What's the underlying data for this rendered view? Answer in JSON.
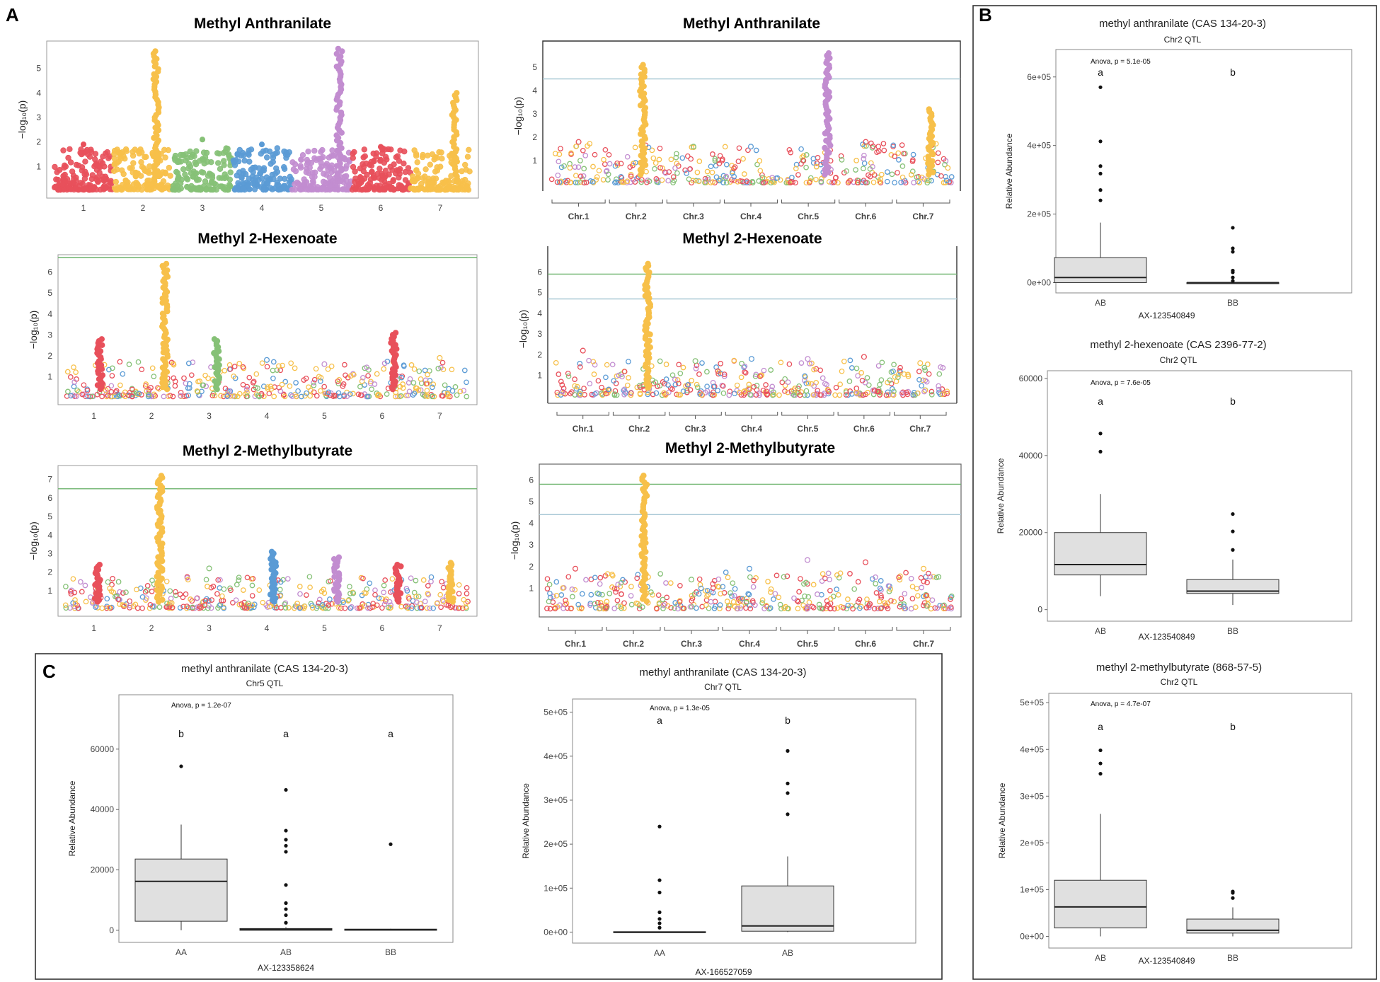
{
  "panels": {
    "a": "A",
    "b": "B",
    "c": "C"
  },
  "colors": {
    "chromosomes": [
      "#e8505b",
      "#f7c04a",
      "#86c177",
      "#5b9bd5",
      "#c28dd0",
      "#e8505b",
      "#f7c04a"
    ],
    "threshold_green": "#6db36d",
    "threshold_blue": "#a9c9d6",
    "box_fill": "#e0e0e0"
  },
  "chart_data": [
    {
      "id": "A1",
      "type": "scatter",
      "subtype": "manhattan",
      "style": "filled",
      "title": "Methyl Anthranilate",
      "ylabel": "−log₁₀(p)",
      "ylim": [
        0,
        6
      ],
      "yticks": [
        1,
        2,
        3,
        4,
        5
      ],
      "chromosomes": [
        "1",
        "2",
        "3",
        "4",
        "5",
        "6",
        "7"
      ],
      "chr_max": [
        1.9,
        5.7,
        2.1,
        1.9,
        5.8,
        1.8,
        4.0
      ],
      "thresholds": []
    },
    {
      "id": "A2",
      "type": "scatter",
      "subtype": "manhattan",
      "style": "hollow",
      "title": "Methyl Anthranilate",
      "ylabel": "−log₁₀(p)",
      "ylim": [
        0,
        6
      ],
      "yticks": [
        1,
        2,
        3,
        4,
        5
      ],
      "chromosomes": [
        "Chr.1",
        "Chr.2",
        "Chr.3",
        "Chr.4",
        "Chr.5",
        "Chr.6",
        "Chr.7"
      ],
      "chr_max": [
        1.8,
        5.1,
        1.6,
        1.6,
        5.6,
        1.8,
        3.2
      ],
      "thresholds": [
        {
          "value": 4.5,
          "color": "blue"
        }
      ]
    },
    {
      "id": "A3",
      "type": "scatter",
      "subtype": "manhattan",
      "style": "hollow",
      "title": "Methyl 2-Hexenoate",
      "ylabel": "−log₁₀(p)",
      "ylim": [
        0,
        6.7
      ],
      "yticks": [
        1,
        2,
        3,
        4,
        5,
        6
      ],
      "chromosomes": [
        "1",
        "2",
        "3",
        "4",
        "5",
        "6",
        "7"
      ],
      "chr_max": [
        2.8,
        6.4,
        2.8,
        1.8,
        1.6,
        3.1,
        1.9
      ],
      "thresholds": [
        {
          "value": 6.7,
          "color": "green"
        }
      ]
    },
    {
      "id": "A4",
      "type": "scatter",
      "subtype": "manhattan",
      "style": "hollow",
      "title": "Methyl 2-Hexenoate",
      "ylabel": "−log₁₀(p)",
      "ylim": [
        0,
        6.7
      ],
      "yticks": [
        1,
        2,
        3,
        4,
        5,
        6
      ],
      "chromosomes": [
        "Chr.1",
        "Chr.2",
        "Chr.3",
        "Chr.4",
        "Chr.5",
        "Chr.6",
        "Chr.7"
      ],
      "chr_max": [
        2.2,
        6.4,
        1.7,
        1.8,
        1.8,
        1.9,
        1.6
      ],
      "thresholds": [
        {
          "value": 5.9,
          "color": "green"
        },
        {
          "value": 4.7,
          "color": "blue"
        }
      ]
    },
    {
      "id": "A5",
      "type": "scatter",
      "subtype": "manhattan",
      "style": "hollow",
      "title": "Methyl 2-Methylbutyrate",
      "ylabel": "−log₁₀(p)",
      "ylim": [
        0,
        7.6
      ],
      "yticks": [
        1,
        2,
        3,
        4,
        5,
        6,
        7
      ],
      "chromosomes": [
        "1",
        "2",
        "3",
        "4",
        "5",
        "6",
        "7"
      ],
      "chr_max": [
        2.4,
        7.2,
        2.2,
        3.1,
        2.8,
        2.4,
        2.5
      ],
      "thresholds": [
        {
          "value": 6.5,
          "color": "green"
        }
      ]
    },
    {
      "id": "A6",
      "type": "scatter",
      "subtype": "manhattan",
      "style": "hollow",
      "title": "Methyl 2-Methylbutyrate",
      "ylabel": "−log₁₀(p)",
      "ylim": [
        0,
        6.6
      ],
      "yticks": [
        1,
        2,
        3,
        4,
        5,
        6
      ],
      "chromosomes": [
        "Chr.1",
        "Chr.2",
        "Chr.3",
        "Chr.4",
        "Chr.5",
        "Chr.6",
        "Chr.7"
      ],
      "chr_max": [
        1.9,
        6.2,
        1.4,
        1.9,
        2.3,
        2.2,
        1.9
      ],
      "thresholds": [
        {
          "value": 5.8,
          "color": "green"
        },
        {
          "value": 4.4,
          "color": "blue"
        }
      ]
    },
    {
      "id": "B1",
      "type": "box",
      "title": "methyl anthranilate (CAS 134-20-3)",
      "subtitle": "Chr2 QTL",
      "xlabel": "AX-123540849",
      "ylabel": "Relative Abundance",
      "anova": "Anova, p = 5.1e-05",
      "ylim": [
        -30000,
        680000
      ],
      "yticks": [
        0,
        200000,
        400000,
        600000
      ],
      "ytick_labels": [
        "0e+00",
        "2e+05",
        "4e+05",
        "6e+05"
      ],
      "groups": [
        {
          "label": "AB",
          "letter": "a",
          "q1": 0,
          "median": 15000,
          "q3": 73000,
          "whisker_low": 0,
          "whisker_high": 175000,
          "outliers": [
            240000,
            270000,
            318000,
            340000,
            412000,
            570000
          ]
        },
        {
          "label": "BB",
          "letter": "b",
          "q1": 0,
          "median": 0,
          "q3": 0,
          "whisker_low": 0,
          "whisker_high": 0,
          "outliers": [
            5000,
            15000,
            30000,
            35000,
            90000,
            100000,
            160000
          ]
        }
      ]
    },
    {
      "id": "B2",
      "type": "box",
      "title": "methyl 2-hexenoate (CAS 2396-77-2)",
      "subtitle": "Chr2 QTL",
      "xlabel": "AX-123540849",
      "ylabel": "Relative Abundance",
      "anova": "Anova, p = 7.6e-05",
      "ylim": [
        -3000,
        62000
      ],
      "yticks": [
        0,
        20000,
        40000,
        60000
      ],
      "ytick_labels": [
        "0",
        "20000",
        "40000",
        "60000"
      ],
      "groups": [
        {
          "label": "AB",
          "letter": "a",
          "q1": 9000,
          "median": 11700,
          "q3": 20000,
          "whisker_low": 3500,
          "whisker_high": 30000,
          "outliers": [
            41000,
            45700
          ]
        },
        {
          "label": "BB",
          "letter": "b",
          "q1": 4200,
          "median": 4800,
          "q3": 7800,
          "whisker_low": 1200,
          "whisker_high": 13000,
          "outliers": [
            15500,
            20300,
            24800
          ]
        }
      ]
    },
    {
      "id": "B3",
      "type": "box",
      "title": "methyl 2-methylbutyrate (868-57-5)",
      "subtitle": "Chr2 QTL",
      "xlabel": "AX-123540849",
      "ylabel": "Relative Abundance",
      "anova": "Anova, p = 4.7e-07",
      "ylim": [
        -25000,
        520000
      ],
      "yticks": [
        0,
        100000,
        200000,
        300000,
        400000,
        500000
      ],
      "ytick_labels": [
        "0e+00",
        "1e+05",
        "2e+05",
        "3e+05",
        "4e+05",
        "5e+05"
      ],
      "groups": [
        {
          "label": "AB",
          "letter": "a",
          "q1": 18000,
          "median": 63000,
          "q3": 120000,
          "whisker_low": 0,
          "whisker_high": 262000,
          "outliers": [
            348000,
            370000,
            398000
          ]
        },
        {
          "label": "BB",
          "letter": "b",
          "q1": 7000,
          "median": 13000,
          "q3": 37000,
          "whisker_low": 0,
          "whisker_high": 62000,
          "outliers": [
            82000,
            93000,
            96000
          ]
        }
      ]
    },
    {
      "id": "C1",
      "type": "box",
      "title": "methyl anthranilate (CAS 134-20-3)",
      "subtitle": "Chr5 QTL",
      "xlabel": "AX-123358624",
      "ylabel": "Relative Abundance",
      "anova": "Anova, p = 1.2e-07",
      "ylim": [
        -4000,
        78000
      ],
      "yticks": [
        0,
        20000,
        40000,
        60000
      ],
      "ytick_labels": [
        "0",
        "20000",
        "40000",
        "60000"
      ],
      "groups": [
        {
          "label": "AA",
          "letter": "b",
          "q1": 3000,
          "median": 16200,
          "q3": 23600,
          "whisker_low": 0,
          "whisker_high": 35000,
          "outliers": [
            54300
          ]
        },
        {
          "label": "AB",
          "letter": "a",
          "q1": 0,
          "median": 300,
          "q3": 600,
          "whisker_low": 0,
          "whisker_high": 1000,
          "outliers": [
            2500,
            5000,
            7000,
            9000,
            15000,
            26000,
            28000,
            30000,
            33000,
            46500
          ]
        },
        {
          "label": "BB",
          "letter": "a",
          "q1": 0,
          "median": 200,
          "q3": 400,
          "whisker_low": 0,
          "whisker_high": 500,
          "outliers": [
            28500
          ]
        }
      ]
    },
    {
      "id": "C2",
      "type": "box",
      "title": "methyl anthranilate (CAS 134-20-3)",
      "subtitle": "Chr7 QTL",
      "xlabel": "AX-166527059",
      "ylabel": "Relative Abundance",
      "anova": "Anova, p = 1.3e-05",
      "ylim": [
        -25000,
        530000
      ],
      "yticks": [
        0,
        100000,
        200000,
        300000,
        400000,
        500000
      ],
      "ytick_labels": [
        "0e+00",
        "1e+05",
        "2e+05",
        "3e+05",
        "4e+05",
        "5e+05"
      ],
      "groups": [
        {
          "label": "AA",
          "letter": "a",
          "q1": 0,
          "median": 0,
          "q3": 1000,
          "whisker_low": 0,
          "whisker_high": 1500,
          "outliers": [
            10000,
            20000,
            30000,
            45000,
            90000,
            118000,
            240000
          ]
        },
        {
          "label": "AB",
          "letter": "b",
          "q1": 2000,
          "median": 14000,
          "q3": 105000,
          "whisker_low": 0,
          "whisker_high": 172000,
          "outliers": [
            268000,
            316000,
            338000,
            412000
          ]
        }
      ]
    }
  ]
}
